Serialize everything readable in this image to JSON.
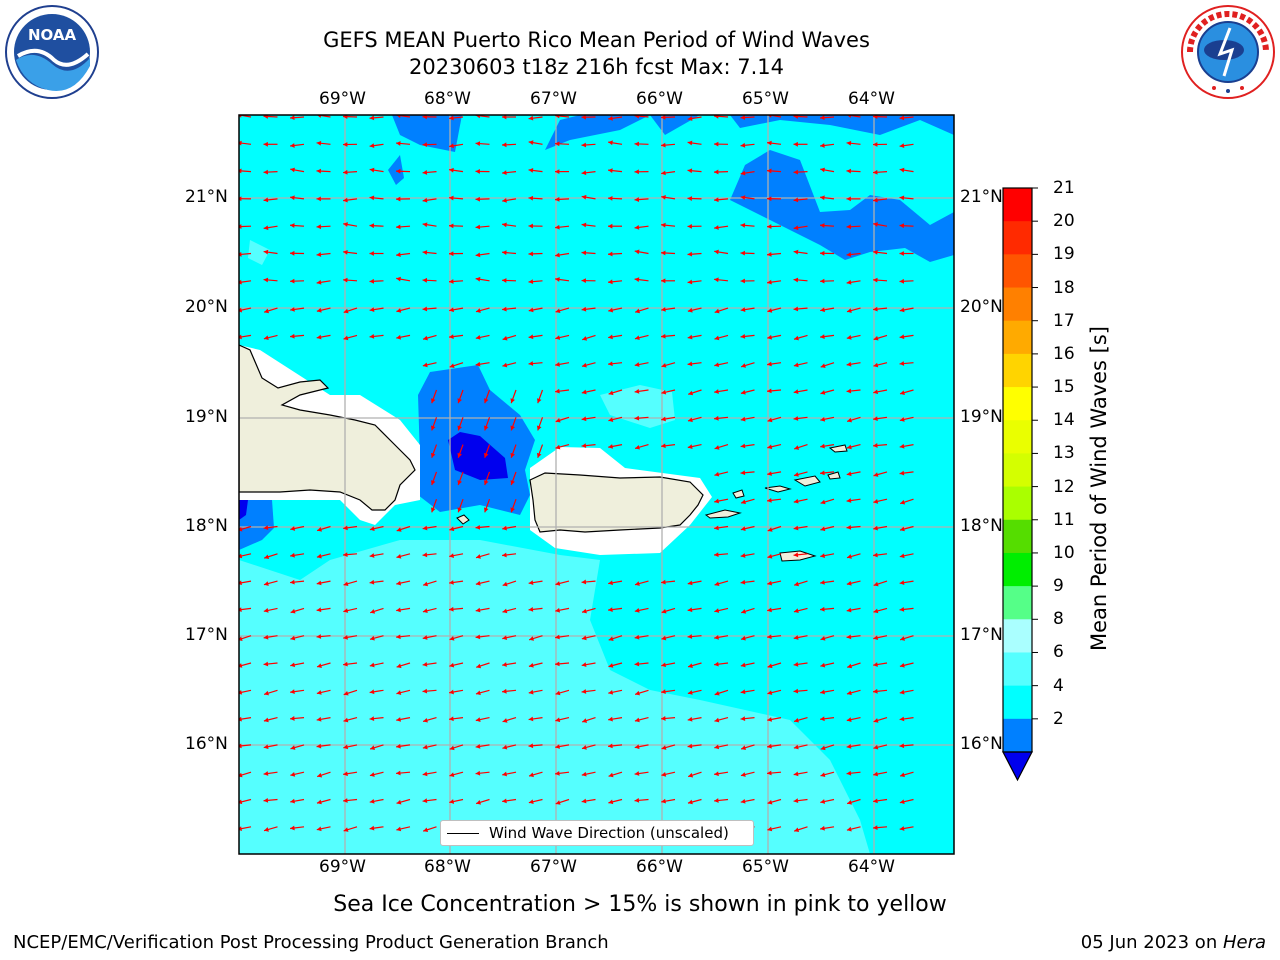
{
  "header": {
    "title_line1": "GEFS MEAN Puerto Rico Mean Period of Wind Waves",
    "title_line2": "20230603 t18z 216h fcst   Max: 7.14"
  },
  "logos": {
    "left": "noaa-logo",
    "right": "national-weather-service-logo"
  },
  "axes": {
    "x_ticks": [
      "69°W",
      "68°W",
      "67°W",
      "66°W",
      "65°W",
      "64°W"
    ],
    "y_ticks": [
      "21°N",
      "20°N",
      "19°N",
      "18°N",
      "17°N",
      "16°N"
    ]
  },
  "colorbar": {
    "label": "Mean Period of Wind Waves [s]",
    "ticks": [
      "21",
      "20",
      "19",
      "18",
      "17",
      "16",
      "15",
      "14",
      "13",
      "12",
      "11",
      "10",
      "9",
      "8",
      "6",
      "4",
      "2"
    ],
    "colors": [
      "#ff0000",
      "#ff2a00",
      "#ff5500",
      "#ff8000",
      "#ffaa00",
      "#ffd400",
      "#ffff00",
      "#eaff00",
      "#d4ff00",
      "#aaff00",
      "#55dd00",
      "#00ee00",
      "#55ff88",
      "#aaffff",
      "#55ffff",
      "#00ffff",
      "#0080ff"
    ],
    "under_color": "#0000ee"
  },
  "legend": {
    "label": "Wind Wave Direction (unscaled)"
  },
  "colors": {
    "ocean_primary": "#00ffff",
    "ocean_light": "#55ffff",
    "deep_band": "#0080ff",
    "deepest": "#0000ee",
    "land": "#efefdc",
    "arrow": "#ff0000",
    "grid": "#b0b0b0"
  },
  "caption": "Sea Ice Concentration > 15% is shown in pink to yellow",
  "footer": {
    "left": "NCEP/EMC/Verification Post Processing Product Generation Branch",
    "right_date": "05 Jun 2023 on ",
    "right_host": "Hera"
  }
}
